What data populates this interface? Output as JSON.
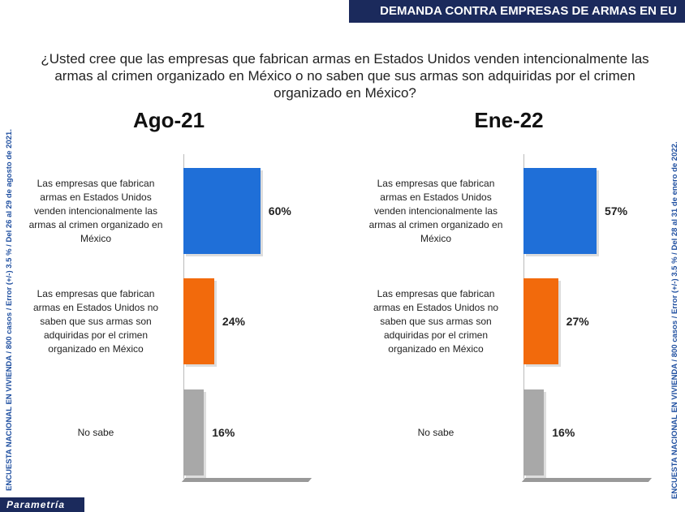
{
  "header": "DEMANDA CONTRA EMPRESAS DE ARMAS EN EU",
  "question": "¿Usted cree que las empresas que fabrican armas en Estados Unidos venden intencionalmente las armas al crimen organizado en México o no saben que sus armas son adquiridas por el crimen organizado en México?",
  "side_left": "ENCUESTA NACIONAL EN VIVIENDA / 800 casos / Error (+/-) 3.5 % / Del 26 al 29 de agosto de 2021.",
  "side_right": "ENCUESTA NACIONAL EN VIVIENDA / 800 casos / Error (+/-) 3.5 % / Del 28 al 31 de enero de 2022.",
  "brand": "Parametría",
  "chart_data": [
    {
      "type": "bar",
      "title": "Ago-21",
      "categories": [
        "Las empresas que fabrican armas en Estados Unidos venden intencionalmente las armas al crimen organizado en México",
        "Las empresas que fabrican armas en Estados Unidos no saben que sus armas son adquiridas por el crimen organizado en México",
        "No sabe"
      ],
      "values": [
        60,
        24,
        16
      ],
      "value_labels": [
        "60%",
        "24%",
        "16%"
      ],
      "colors": [
        "#1f6fd8",
        "#f26a0c",
        "#a8a8a8"
      ]
    },
    {
      "type": "bar",
      "title": "Ene-22",
      "categories": [
        "Las empresas que fabrican armas en Estados Unidos venden intencionalmente las armas al crimen organizado en México",
        "Las empresas que fabrican armas en Estados Unidos no saben que sus armas son adquiridas por el crimen organizado en México",
        "No sabe"
      ],
      "values": [
        57,
        27,
        16
      ],
      "value_labels": [
        "57%",
        "27%",
        "16%"
      ],
      "colors": [
        "#1f6fd8",
        "#f26a0c",
        "#a8a8a8"
      ]
    }
  ]
}
